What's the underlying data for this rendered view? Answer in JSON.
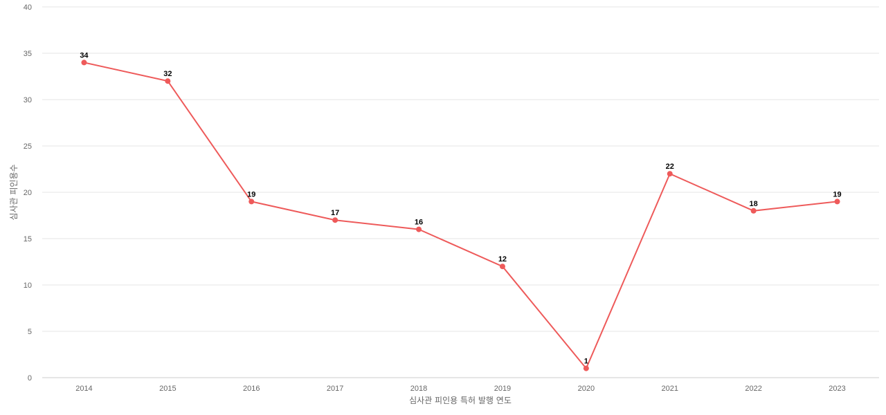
{
  "chart_data": {
    "type": "line",
    "categories": [
      "2014",
      "2015",
      "2016",
      "2017",
      "2018",
      "2019",
      "2020",
      "2021",
      "2022",
      "2023"
    ],
    "series": [
      {
        "values": [
          34,
          32,
          19,
          17,
          16,
          12,
          1,
          22,
          18,
          19
        ]
      }
    ],
    "xlabel": "심사관 피인용 특허 발행 연도",
    "ylabel": "심사관 피인용수",
    "ylim": [
      0,
      40
    ],
    "yticks": [
      0,
      5,
      10,
      15,
      20,
      25,
      30,
      35,
      40
    ],
    "grid": true,
    "data_labels": true,
    "colors": {
      "line": "#ee5a5a",
      "grid": "#e6e6e6",
      "axis_text": "#666666",
      "label_text": "#000000"
    }
  }
}
